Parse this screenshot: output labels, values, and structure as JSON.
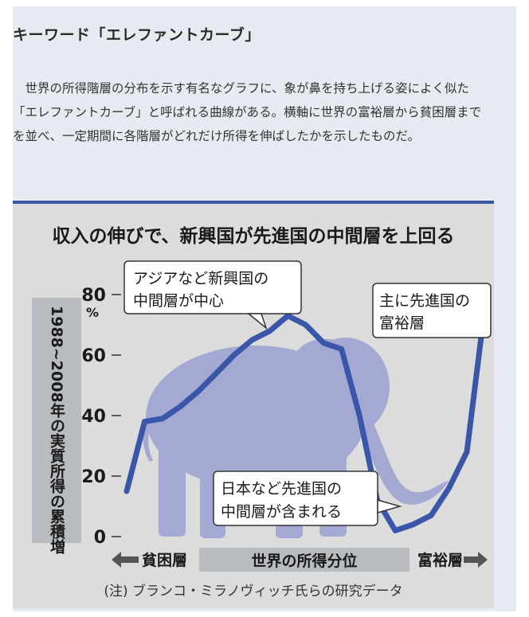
{
  "article": {
    "heading": "キーワード「エレファントカーブ」",
    "body": "世界の所得階層の分布を示す有名なグラフに、象が鼻を持ち上げる姿によく似た「エレファントカーブ」と呼ばれる曲線がある。横軸に世界の富裕層から貧困層までを並べ、一定期間に各階層がどれだけ所得を伸ばしたかを示したものだ。"
  },
  "chart_data": {
    "type": "line",
    "title": "収入の伸びで、新興国が先進国の中間層を上回る",
    "ylabel": "1988~2008年の実質所得の累積増",
    "yunit": "%",
    "xlabel": "世界の所得分位",
    "x_left_label": "貧困層",
    "x_right_label": "富裕層",
    "ylim": [
      0,
      80
    ],
    "yticks": [
      0,
      20,
      40,
      60,
      80
    ],
    "x": [
      0,
      5,
      10,
      15,
      20,
      25,
      30,
      35,
      40,
      45,
      50,
      55,
      60,
      65,
      70,
      75,
      80,
      85,
      90,
      95,
      99
    ],
    "series": [
      {
        "values": [
          15,
          38,
          39,
          43,
          48,
          54,
          60,
          65,
          68,
          73,
          70,
          64,
          62,
          40,
          12,
          2,
          4,
          7,
          16,
          28,
          66
        ]
      }
    ],
    "annotations": [
      {
        "line1": "アジアなど新興国の",
        "line2": "中間層が中心"
      },
      {
        "line1": "主に先進国の",
        "line2": "富裕層"
      },
      {
        "line1": "日本など先進国の",
        "line2": "中間層が含まれる"
      }
    ],
    "source": "(注) ブランコ・ミラノヴィッチ氏らの研究データ",
    "line_color": "#3a56a8",
    "elephant_color": "#a4a9d4"
  }
}
